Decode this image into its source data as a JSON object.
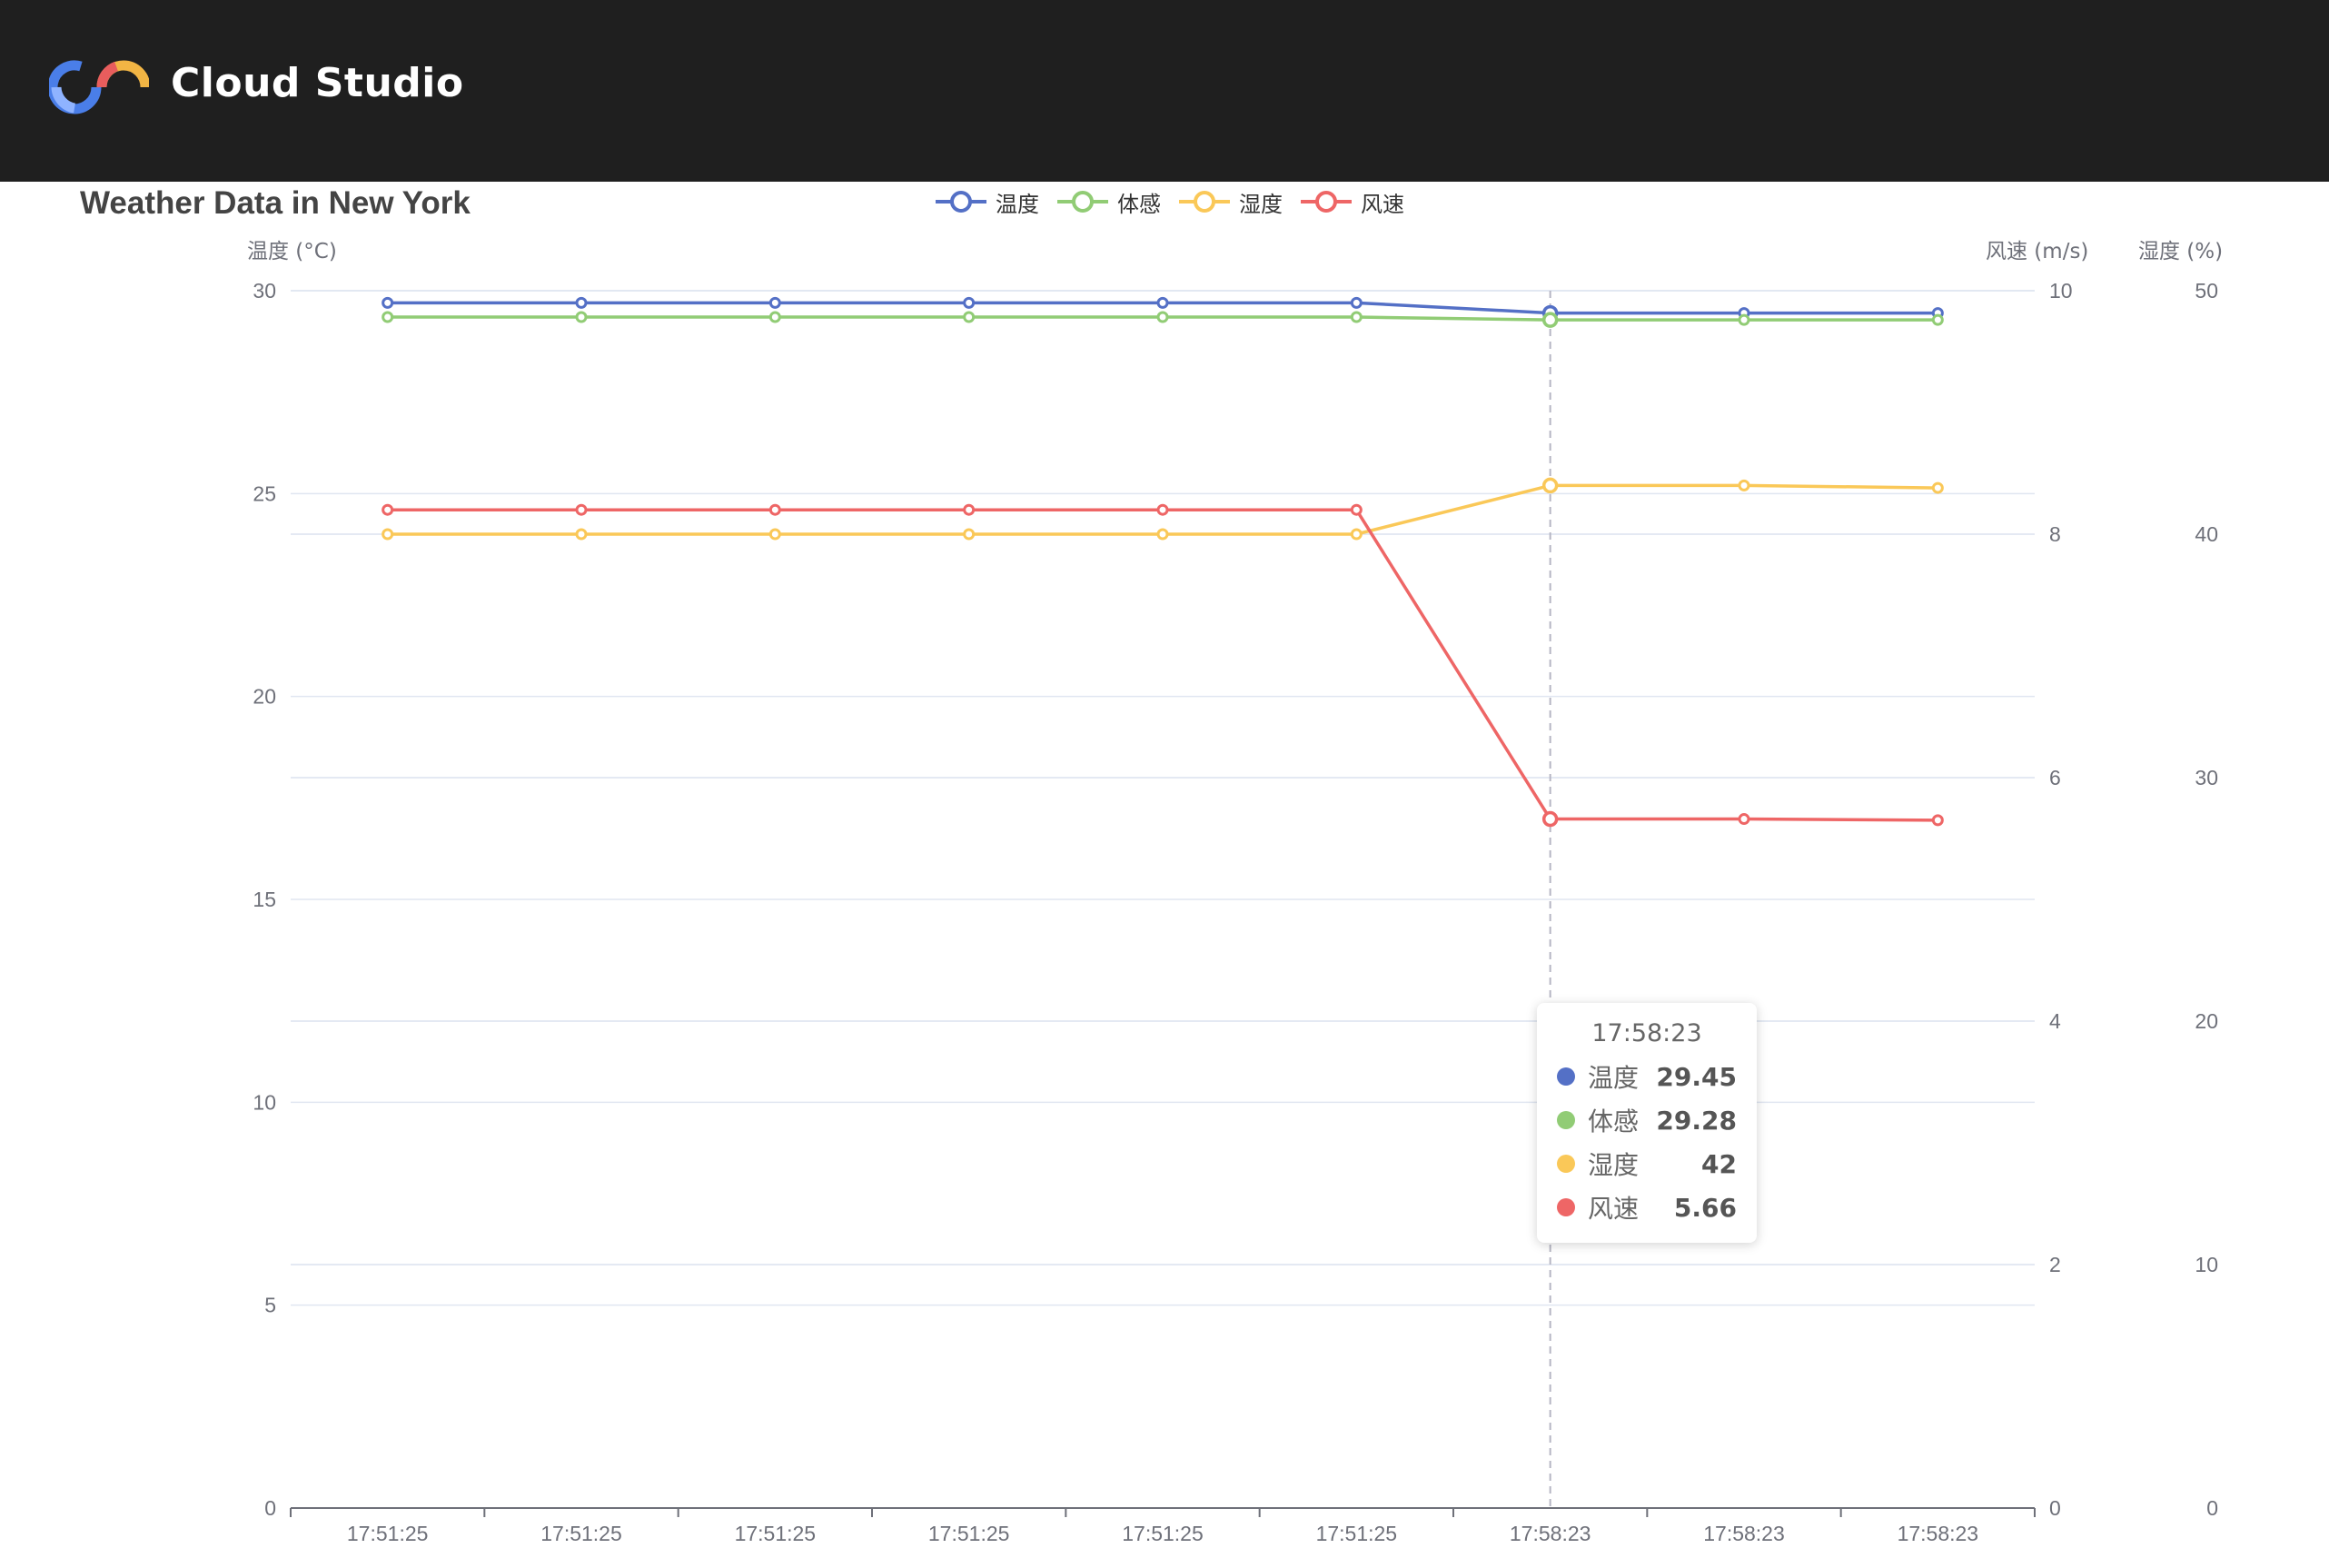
{
  "app": {
    "name": "Cloud Studio",
    "logo_colors": [
      "#3b6fd9",
      "#e85d5d",
      "#f2b544"
    ]
  },
  "legend": [
    {
      "name": "温度",
      "color": "#5470c6"
    },
    {
      "name": "体感",
      "color": "#91cc75"
    },
    {
      "name": "湿度",
      "color": "#fac858"
    },
    {
      "name": "风速",
      "color": "#ee6666"
    }
  ],
  "tooltip": {
    "title": "17:58:23",
    "rows": [
      {
        "name": "温度",
        "value": "29.45",
        "color": "#5470c6"
      },
      {
        "name": "体感",
        "value": "29.28",
        "color": "#91cc75"
      },
      {
        "name": "湿度",
        "value": "42",
        "color": "#fac858"
      },
      {
        "name": "风速",
        "value": "5.66",
        "color": "#ee6666"
      }
    ]
  },
  "chart_data": {
    "type": "line",
    "title": "Weather Data in New York",
    "categories": [
      "17:51:25",
      "17:51:25",
      "17:51:25",
      "17:51:25",
      "17:51:25",
      "17:51:25",
      "17:58:23",
      "17:58:23",
      "17:58:23"
    ],
    "y_axes": [
      {
        "name": "温度 (°C)",
        "position": "left",
        "min": 0,
        "max": 30,
        "ticks": [
          0,
          5,
          10,
          15,
          20,
          25,
          30
        ]
      },
      {
        "name": "风速 (m/s)",
        "position": "right",
        "min": 0,
        "max": 10,
        "ticks": [
          0,
          2,
          4,
          6,
          8,
          10
        ]
      },
      {
        "name": "湿度 (%)",
        "position": "right-outer",
        "min": 0,
        "max": 50,
        "ticks": [
          0,
          10,
          20,
          30,
          40,
          50
        ]
      }
    ],
    "series": [
      {
        "name": "温度",
        "axis": 0,
        "color": "#5470c6",
        "values": [
          29.7,
          29.7,
          29.7,
          29.7,
          29.7,
          29.7,
          29.45,
          29.45,
          29.45
        ]
      },
      {
        "name": "体感",
        "axis": 0,
        "color": "#91cc75",
        "values": [
          29.35,
          29.35,
          29.35,
          29.35,
          29.35,
          29.35,
          29.28,
          29.28,
          29.28
        ]
      },
      {
        "name": "湿度",
        "axis": 2,
        "color": "#fac858",
        "values": [
          40,
          40,
          40,
          40,
          40,
          40,
          42,
          42,
          41.9
        ]
      },
      {
        "name": "风速",
        "axis": 1,
        "color": "#ee6666",
        "values": [
          8.2,
          8.2,
          8.2,
          8.2,
          8.2,
          8.2,
          5.66,
          5.66,
          5.65
        ]
      }
    ],
    "highlight_index": 6,
    "grid": true,
    "legend_position": "top-center"
  }
}
